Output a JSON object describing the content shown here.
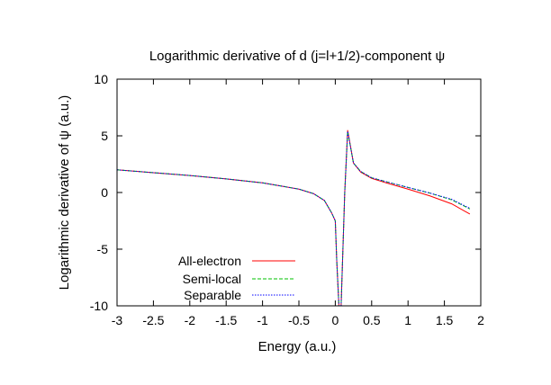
{
  "chart_data": {
    "type": "line",
    "title": "Logarithmic derivative of d (j=l+1/2)-component ψ",
    "xlabel": "Energy (a.u.)",
    "ylabel": "Logarithmic derivative of ψ (a.u.)",
    "xlim": [
      -3,
      2
    ],
    "ylim": [
      -10,
      10
    ],
    "xticks": [
      -3,
      -2.5,
      -2,
      -1.5,
      -1,
      -0.5,
      0,
      0.5,
      1,
      1.5,
      2
    ],
    "xtick_labels": [
      "-3",
      "-2.5",
      "-2",
      "-1.5",
      "-1",
      "-0.5",
      "0",
      "0.5",
      "1",
      "1.5",
      "2"
    ],
    "yticks": [
      -10,
      -5,
      0,
      5,
      10
    ],
    "ytick_labels": [
      "-10",
      "-5",
      "0",
      "5",
      "10"
    ],
    "grid": false,
    "legend_position": "bottom-left",
    "series": [
      {
        "name": "All-electron",
        "color": "#ff0000",
        "dash": "solid",
        "x": [
          -3.0,
          -2.5,
          -2.0,
          -1.5,
          -1.0,
          -0.5,
          -0.3,
          -0.15,
          -0.05,
          0.0,
          0.02,
          0.05,
          0.08,
          0.1,
          0.13,
          0.17,
          0.25,
          0.35,
          0.5,
          0.7,
          1.0,
          1.3,
          1.6,
          1.85
        ],
        "y": [
          2.0,
          1.75,
          1.5,
          1.2,
          0.85,
          0.3,
          -0.1,
          -0.7,
          -1.8,
          -2.5,
          -6.0,
          -10.0,
          -10.0,
          -6.0,
          0.0,
          5.5,
          2.6,
          1.8,
          1.25,
          0.85,
          0.3,
          -0.3,
          -1.0,
          -1.9
        ]
      },
      {
        "name": "Semi-local",
        "color": "#00c000",
        "dash": "dashed",
        "x": [
          -3.0,
          -2.5,
          -2.0,
          -1.5,
          -1.0,
          -0.5,
          -0.3,
          -0.15,
          -0.05,
          0.0,
          0.02,
          0.05,
          0.08,
          0.1,
          0.13,
          0.17,
          0.25,
          0.35,
          0.5,
          0.7,
          1.0,
          1.3,
          1.6,
          1.85
        ],
        "y": [
          2.0,
          1.75,
          1.5,
          1.2,
          0.85,
          0.3,
          -0.1,
          -0.7,
          -1.8,
          -2.5,
          -6.0,
          -10.0,
          -10.0,
          -6.0,
          0.0,
          5.4,
          2.6,
          1.85,
          1.3,
          0.95,
          0.45,
          -0.05,
          -0.65,
          -1.45
        ]
      },
      {
        "name": "Separable",
        "color": "#0000ff",
        "dash": "dotted",
        "x": [
          -3.0,
          -2.5,
          -2.0,
          -1.5,
          -1.0,
          -0.5,
          -0.3,
          -0.15,
          -0.05,
          0.0,
          0.02,
          0.05,
          0.08,
          0.1,
          0.13,
          0.17,
          0.25,
          0.35,
          0.5,
          0.7,
          1.0,
          1.3,
          1.6,
          1.85
        ],
        "y": [
          2.0,
          1.75,
          1.5,
          1.2,
          0.85,
          0.3,
          -0.1,
          -0.7,
          -1.8,
          -2.5,
          -6.0,
          -10.0,
          -10.0,
          -6.0,
          0.0,
          5.4,
          2.6,
          1.85,
          1.3,
          0.95,
          0.45,
          -0.05,
          -0.6,
          -1.4
        ]
      }
    ]
  }
}
